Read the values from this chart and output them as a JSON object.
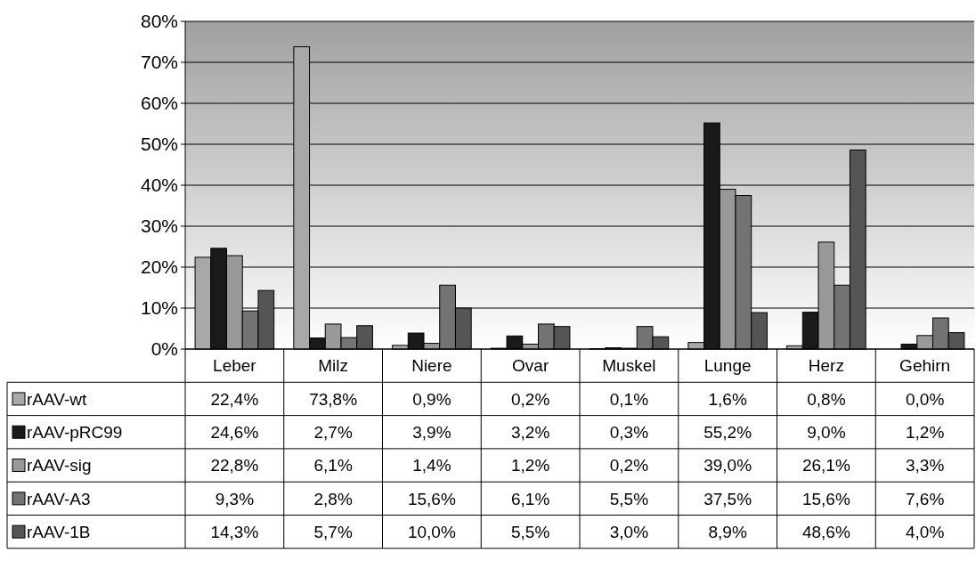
{
  "chart_data": {
    "type": "bar",
    "categories": [
      "Leber",
      "Milz",
      "Niere",
      "Ovar",
      "Muskel",
      "Lunge",
      "Herz",
      "Gehirn"
    ],
    "ylim": [
      0,
      80
    ],
    "yticks": [
      {
        "value": 0,
        "label": "0%"
      },
      {
        "value": 10,
        "label": "10%"
      },
      {
        "value": 20,
        "label": "20%"
      },
      {
        "value": 30,
        "label": "30%"
      },
      {
        "value": 40,
        "label": "40%"
      },
      {
        "value": 50,
        "label": "50%"
      },
      {
        "value": 60,
        "label": "60%"
      },
      {
        "value": 70,
        "label": "70%"
      },
      {
        "value": 80,
        "label": "80%"
      }
    ],
    "grid": "y",
    "legend": "bottom",
    "series": [
      {
        "name": "rAAV-wt",
        "color": "#a8a8a8",
        "values": [
          22.4,
          73.8,
          0.9,
          0.2,
          0.1,
          1.6,
          0.8,
          0.0
        ],
        "value_labels": [
          "22,4%",
          "73,8%",
          "0,9%",
          "0,2%",
          "0,1%",
          "1,6%",
          "0,8%",
          "0,0%"
        ]
      },
      {
        "name": "rAAV-pRC99",
        "color": "#1a1a1a",
        "values": [
          24.6,
          2.7,
          3.9,
          3.2,
          0.3,
          55.2,
          9.0,
          1.2
        ],
        "value_labels": [
          "24,6%",
          "2,7%",
          "3,9%",
          "3,2%",
          "0,3%",
          "55,2%",
          "9,0%",
          "1,2%"
        ]
      },
      {
        "name": "rAAV-sig",
        "color": "#999999",
        "values": [
          22.8,
          6.1,
          1.4,
          1.2,
          0.2,
          39.0,
          26.1,
          3.3
        ],
        "value_labels": [
          "22,8%",
          "6,1%",
          "1,4%",
          "1,2%",
          "0,2%",
          "39,0%",
          "26,1%",
          "3,3%"
        ]
      },
      {
        "name": "rAAV-A3",
        "color": "#737373",
        "values": [
          9.3,
          2.8,
          15.6,
          6.1,
          5.5,
          37.5,
          15.6,
          7.6
        ],
        "value_labels": [
          "9,3%",
          "2,8%",
          "15,6%",
          "6,1%",
          "5,5%",
          "37,5%",
          "15,6%",
          "7,6%"
        ]
      },
      {
        "name": "rAAV-1B",
        "color": "#555555",
        "values": [
          14.3,
          5.7,
          10.0,
          5.5,
          3.0,
          8.9,
          48.6,
          4.0
        ],
        "value_labels": [
          "14,3%",
          "5,7%",
          "10,0%",
          "5,5%",
          "3,0%",
          "8,9%",
          "48,6%",
          "4,0%"
        ]
      }
    ]
  }
}
